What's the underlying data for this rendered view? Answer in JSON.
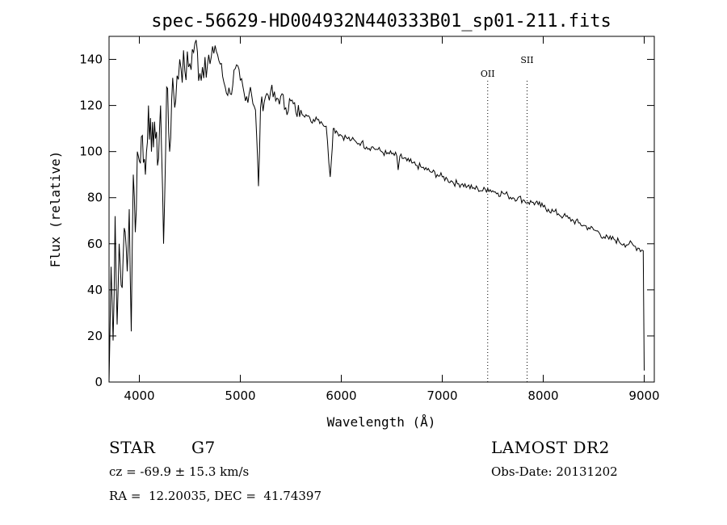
{
  "chart_data": {
    "type": "line",
    "title": "spec-56629-HD004932N440333B01_sp01-211.fits",
    "xlabel": "Wavelength (Å)",
    "ylabel": "Flux (relative)",
    "xlim": [
      3700,
      9100
    ],
    "ylim": [
      0,
      150
    ],
    "x_ticks": [
      4000,
      5000,
      6000,
      7000,
      8000,
      9000
    ],
    "y_ticks": [
      0,
      20,
      40,
      60,
      80,
      100,
      120,
      140
    ],
    "grid": false,
    "series": [
      {
        "x": [
          3700,
          3720,
          3740,
          3760,
          3780,
          3800,
          3820,
          3840,
          3860,
          3880,
          3900,
          3920,
          3940,
          3960,
          3980,
          4000,
          4030,
          4060,
          4090,
          4120,
          4150,
          4180,
          4210,
          4240,
          4270,
          4300,
          4330,
          4360,
          4400,
          4450,
          4500,
          4550,
          4600,
          4650,
          4700,
          4750,
          4800,
          4850,
          4900,
          4950,
          5000,
          5050,
          5100,
          5150,
          5180,
          5200,
          5250,
          5300,
          5350,
          5400,
          5450,
          5500,
          5550,
          5600,
          5650,
          5700,
          5750,
          5800,
          5850,
          5890,
          5920,
          5950,
          6000,
          6050,
          6100,
          6150,
          6200,
          6250,
          6300,
          6350,
          6400,
          6450,
          6500,
          6550,
          6563,
          6580,
          6650,
          6700,
          6750,
          6800,
          6850,
          6900,
          6950,
          7000,
          7050,
          7100,
          7150,
          7200,
          7250,
          7300,
          7350,
          7400,
          7450,
          7500,
          7550,
          7600,
          7650,
          7700,
          7750,
          7800,
          7850,
          7900,
          7950,
          8000,
          8050,
          8100,
          8150,
          8200,
          8250,
          8300,
          8350,
          8400,
          8450,
          8500,
          8550,
          8600,
          8650,
          8700,
          8750,
          8800,
          8850,
          8900,
          8950,
          8990,
          9000
        ],
        "y": [
          0,
          50,
          18,
          72,
          25,
          60,
          42,
          55,
          65,
          48,
          75,
          22,
          90,
          65,
          100,
          96,
          107,
          90,
          120,
          100,
          113,
          94,
          120,
          60,
          128,
          100,
          132,
          122,
          140,
          135,
          138,
          147,
          134,
          141,
          138,
          146,
          138,
          128,
          125,
          136,
          131,
          122,
          128,
          118,
          85,
          119,
          124,
          126,
          122,
          124,
          119,
          122,
          117,
          118,
          116,
          113,
          115,
          113,
          111,
          89,
          110,
          109,
          107,
          106,
          105,
          104,
          104,
          102,
          102,
          101,
          100,
          99,
          99,
          98,
          92,
          98,
          96,
          95,
          94,
          93,
          92,
          91,
          90,
          89,
          88,
          87,
          86,
          86,
          85,
          84,
          84,
          83,
          84,
          83,
          82,
          82,
          81,
          80,
          80,
          79,
          78,
          78,
          77,
          76,
          75,
          74,
          73,
          72,
          71,
          70,
          69,
          68,
          67,
          66,
          65,
          63,
          62,
          62,
          61,
          60,
          60,
          59,
          58,
          57,
          5
        ]
      }
    ],
    "line_markers": [
      {
        "label": "OII",
        "x": 7450
      },
      {
        "label": "SII",
        "x": 7840
      }
    ]
  },
  "info": {
    "object_class": "STAR",
    "subclass": "G7",
    "survey": "LAMOST DR2",
    "cz": "cz = -69.9 ± 15.3 km/s",
    "obs_date": "Obs-Date: 20131202",
    "coords": "RA =  12.20035, DEC =  41.74397"
  }
}
